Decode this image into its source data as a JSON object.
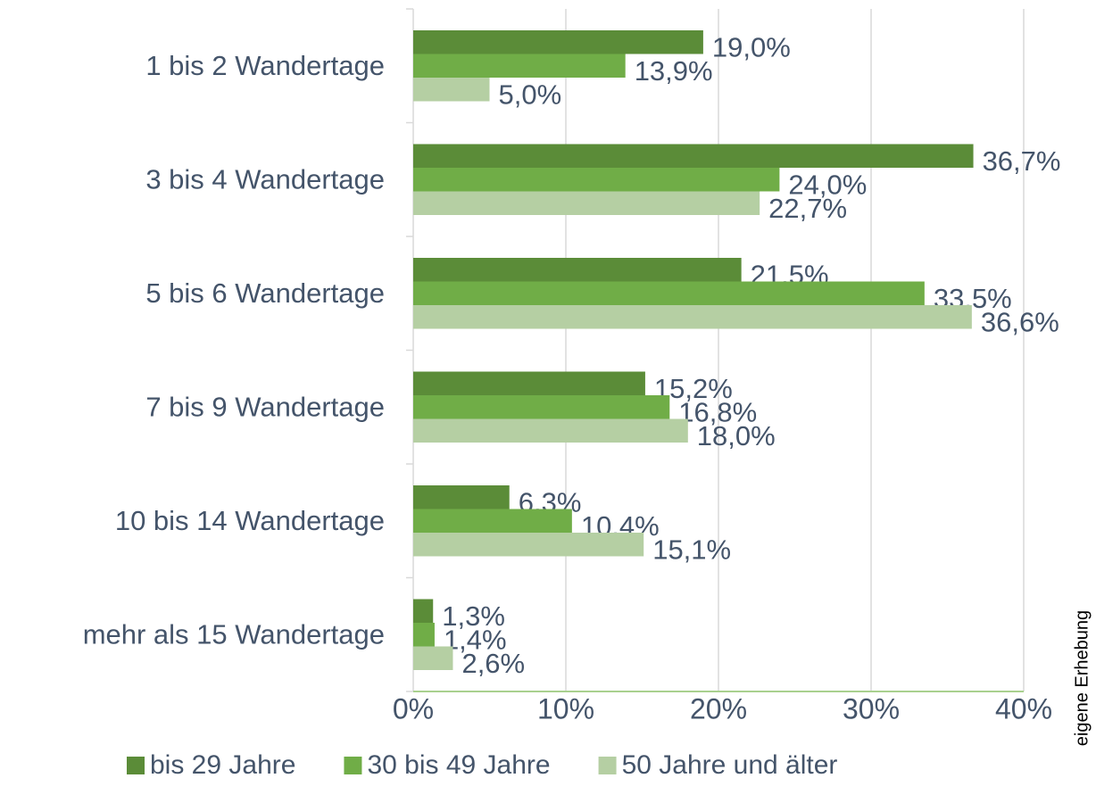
{
  "chart_data": {
    "type": "bar",
    "orientation": "horizontal",
    "categories": [
      "1 bis 2 Wandertage",
      "3 bis 4 Wandertage",
      "5 bis 6 Wandertage",
      "7 bis 9 Wandertage",
      "10 bis 14 Wandertage",
      "mehr als 15 Wandertage"
    ],
    "series": [
      {
        "name": "bis 29 Jahre",
        "color": "#5b8c38",
        "values": [
          19.0,
          36.7,
          21.5,
          15.2,
          6.3,
          1.3
        ],
        "value_labels": [
          "19,0%",
          "36,7%",
          "21,5%",
          "15,2%",
          "6,3%",
          "1,3%"
        ]
      },
      {
        "name": "30 bis 49 Jahre",
        "color": "#70ad47",
        "values": [
          13.9,
          24.0,
          33.5,
          16.8,
          10.4,
          1.4
        ],
        "value_labels": [
          "13,9%",
          "24,0%",
          "33,5%",
          "16,8%",
          "10,4%",
          "1,4%"
        ]
      },
      {
        "name": "50 Jahre und älter",
        "color": "#b5cfa3",
        "values": [
          5.0,
          22.7,
          36.6,
          18.0,
          15.1,
          2.6
        ],
        "value_labels": [
          "5,0%",
          "22,7%",
          "36,6%",
          "18,0%",
          "15,1%",
          "2,6%"
        ]
      }
    ],
    "xlim": [
      0,
      40
    ],
    "xticks": [
      {
        "value": 0,
        "label": "0%"
      },
      {
        "value": 10,
        "label": "10%"
      },
      {
        "value": 20,
        "label": "20%"
      },
      {
        "value": 30,
        "label": "30%"
      },
      {
        "value": 40,
        "label": "40%"
      }
    ],
    "grid": true,
    "legend": "bottom",
    "source": "eigene Erhebung"
  }
}
